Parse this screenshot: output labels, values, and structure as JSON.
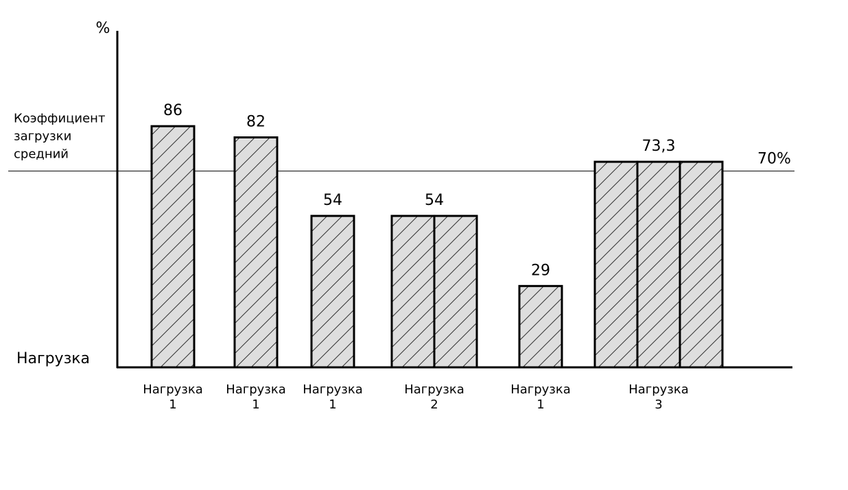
{
  "chart_data": {
    "type": "bar",
    "y_label": "%",
    "x_label": "Нагрузка",
    "categories": [
      "Нагрузка",
      "Нагрузка",
      "Нагрузка",
      "Нагрузка",
      "Нагрузка",
      "Нагрузка"
    ],
    "loads": [
      1,
      1,
      1,
      2,
      1,
      3
    ],
    "values": [
      86,
      82,
      54,
      54,
      29,
      73.3
    ],
    "value_labels": [
      "86",
      "82",
      "54",
      "54",
      "29",
      "73,3"
    ],
    "color": "#dedede",
    "ylim": [
      0,
      120
    ],
    "reference_line": {
      "value": 70,
      "label": "70%",
      "text": [
        "Коэффициент",
        "загрузки",
        "средний"
      ]
    }
  }
}
